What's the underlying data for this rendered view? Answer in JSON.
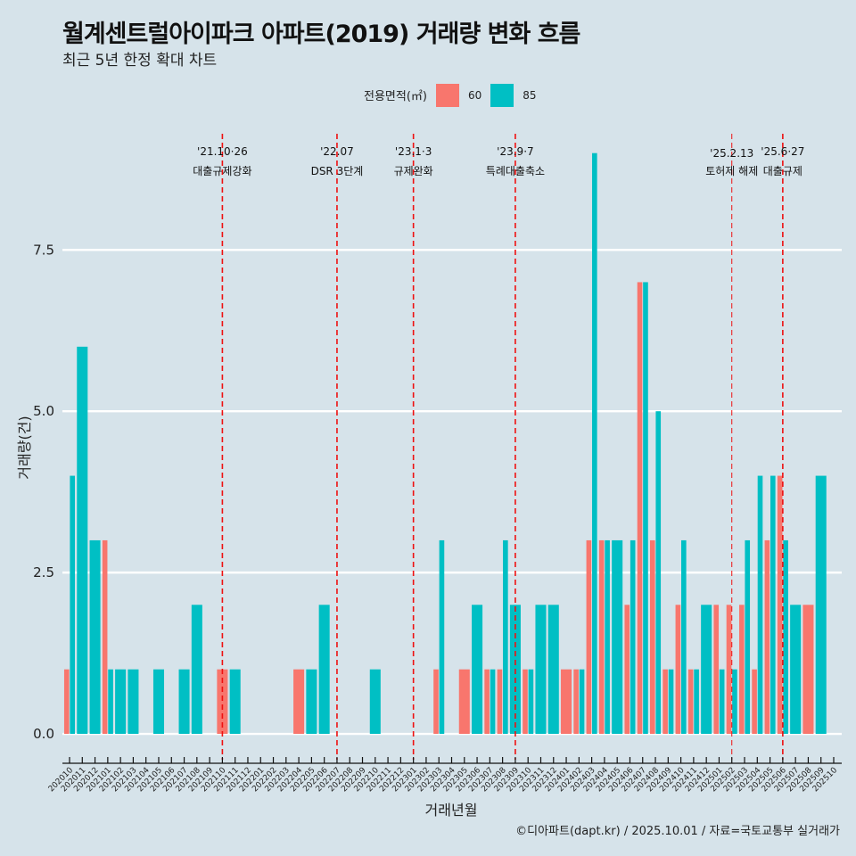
{
  "header": {
    "title": "월계센트럴아이파크 아파트(2019) 거래량 변화 흐름",
    "subtitle": "최근 5년 한정 확대 차트"
  },
  "legend": {
    "title": "전용면적(㎡)",
    "items": [
      {
        "label": "60",
        "color": "#f8766d"
      },
      {
        "label": "85",
        "color": "#00bfc4"
      }
    ]
  },
  "caption": "©디아파트(dapt.kr) / 2025.10.01 / 자료=국토교통부 실거래가",
  "chart_data": {
    "type": "bar",
    "title": "월계센트럴아이파크 아파트(2019) 거래량 변화 흐름",
    "subtitle": "최근 5년 한정 확대 차트",
    "xlabel": "거래년월",
    "ylabel": "거래량(건)",
    "ylim": [
      -0.4,
      9.3
    ],
    "yticks": [
      0.0,
      2.5,
      5.0,
      7.5
    ],
    "ytick_labels": [
      "0.0",
      "2.5",
      "5.0",
      "7.5"
    ],
    "grid": "major-y",
    "legend_position": "top",
    "categories": [
      "202010",
      "202011",
      "202012",
      "202101",
      "202102",
      "202103",
      "202104",
      "202105",
      "202106",
      "202107",
      "202108",
      "202109",
      "202110",
      "202111",
      "202112",
      "202201",
      "202202",
      "202203",
      "202204",
      "202205",
      "202206",
      "202207",
      "202208",
      "202209",
      "202210",
      "202211",
      "202212",
      "202301",
      "202302",
      "202303",
      "202304",
      "202305",
      "202306",
      "202307",
      "202308",
      "202309",
      "202310",
      "202311",
      "202312",
      "202401",
      "202402",
      "202403",
      "202404",
      "202405",
      "202406",
      "202407",
      "202408",
      "202409",
      "202410",
      "202411",
      "202412",
      "202501",
      "202502",
      "202503",
      "202504",
      "202505",
      "202506",
      "202507",
      "202508",
      "202509",
      "202510"
    ],
    "series": [
      {
        "name": "60",
        "color": "#f8766d",
        "values": [
          1,
          null,
          null,
          3,
          null,
          null,
          null,
          null,
          null,
          null,
          null,
          null,
          1,
          null,
          null,
          null,
          null,
          null,
          1,
          null,
          null,
          null,
          null,
          null,
          null,
          null,
          null,
          null,
          null,
          1,
          null,
          1,
          null,
          1,
          1,
          null,
          1,
          null,
          null,
          1,
          1,
          3,
          3,
          null,
          2,
          7,
          3,
          1,
          2,
          1,
          null,
          2,
          2,
          2,
          1,
          3,
          4,
          null,
          2,
          null,
          null
        ]
      },
      {
        "name": "85",
        "color": "#00bfc4",
        "values": [
          4,
          6,
          3,
          1,
          1,
          1,
          null,
          1,
          null,
          1,
          2,
          null,
          null,
          1,
          null,
          null,
          null,
          null,
          null,
          1,
          2,
          null,
          null,
          null,
          1,
          null,
          null,
          null,
          null,
          3,
          null,
          null,
          2,
          1,
          3,
          2,
          1,
          2,
          2,
          null,
          1,
          9,
          3,
          3,
          3,
          7,
          5,
          1,
          3,
          1,
          2,
          1,
          1,
          3,
          4,
          4,
          3,
          2,
          null,
          4,
          null
        ]
      }
    ],
    "annotations": [
      {
        "month": "202110",
        "date": "'21.10·26",
        "label": "대출규제강화"
      },
      {
        "month": "202207",
        "date": "'22.07",
        "label": "DSR 3단계"
      },
      {
        "month": "202301",
        "date": "'23.1·3",
        "label": "규제완화"
      },
      {
        "month": "202309",
        "date": "'23.9·7",
        "label": "특례대출축소"
      },
      {
        "month": "202502",
        "date": "'25.2.13",
        "label": "토허제 해제"
      },
      {
        "month": "202506",
        "date": "'25.6·27",
        "label": "대출규제"
      }
    ],
    "annotation_line_color": "#ee1111"
  }
}
